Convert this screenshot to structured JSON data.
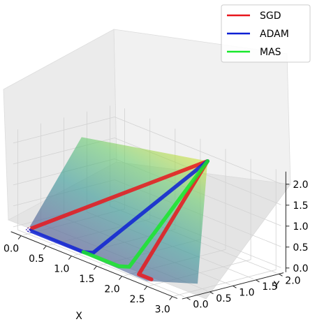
{
  "chart_data": {
    "type": "line",
    "subtype": "3d-surface-with-optimizer-paths",
    "title": "",
    "xlabel": "X",
    "ylabel": "Y",
    "zlabel": "",
    "xlim": [
      -0.2,
      3.1
    ],
    "ylim": [
      -0.1,
      2.1
    ],
    "zlim": [
      -0.1,
      2.3
    ],
    "xticks": [
      "0.0",
      "0.5",
      "1.0",
      "1.5",
      "2.0",
      "2.5",
      "3.0"
    ],
    "yticks": [
      "0.0",
      "0.5",
      "1.0",
      "1.5",
      "2.0"
    ],
    "zticks": [
      "0.0",
      "0.5",
      "1.0",
      "1.5",
      "2.0"
    ],
    "grid": true,
    "legend_position": "top-right",
    "surface": {
      "colormap": "viridis",
      "opacity": 0.55
    },
    "start_marker": {
      "symbol": "×",
      "x": 0,
      "y": 0,
      "z": 0,
      "color": "#ffffff"
    },
    "series": [
      {
        "name": "SGD",
        "color": "#e8161c",
        "points": [
          [
            0.0,
            0.0,
            0.0
          ],
          [
            0.0,
            0.0,
            0.0
          ],
          [
            2.1,
            1.6,
            2.2
          ],
          [
            2.2,
            0.0,
            0.0
          ],
          [
            2.45,
            0.0,
            0.0
          ]
        ]
      },
      {
        "name": "ADAM",
        "color": "#0d20d4",
        "points": [
          [
            0.0,
            0.0,
            0.0
          ],
          [
            1.1,
            0.0,
            0.0
          ],
          [
            1.2,
            0.1,
            0.0
          ],
          [
            2.1,
            1.6,
            2.2
          ]
        ]
      },
      {
        "name": "MAS",
        "color": "#17e82a",
        "points": [
          [
            1.1,
            0.0,
            0.0
          ],
          [
            1.8,
            0.0,
            0.0
          ],
          [
            1.9,
            0.12,
            0.0
          ],
          [
            2.1,
            1.6,
            2.2
          ]
        ]
      }
    ]
  }
}
